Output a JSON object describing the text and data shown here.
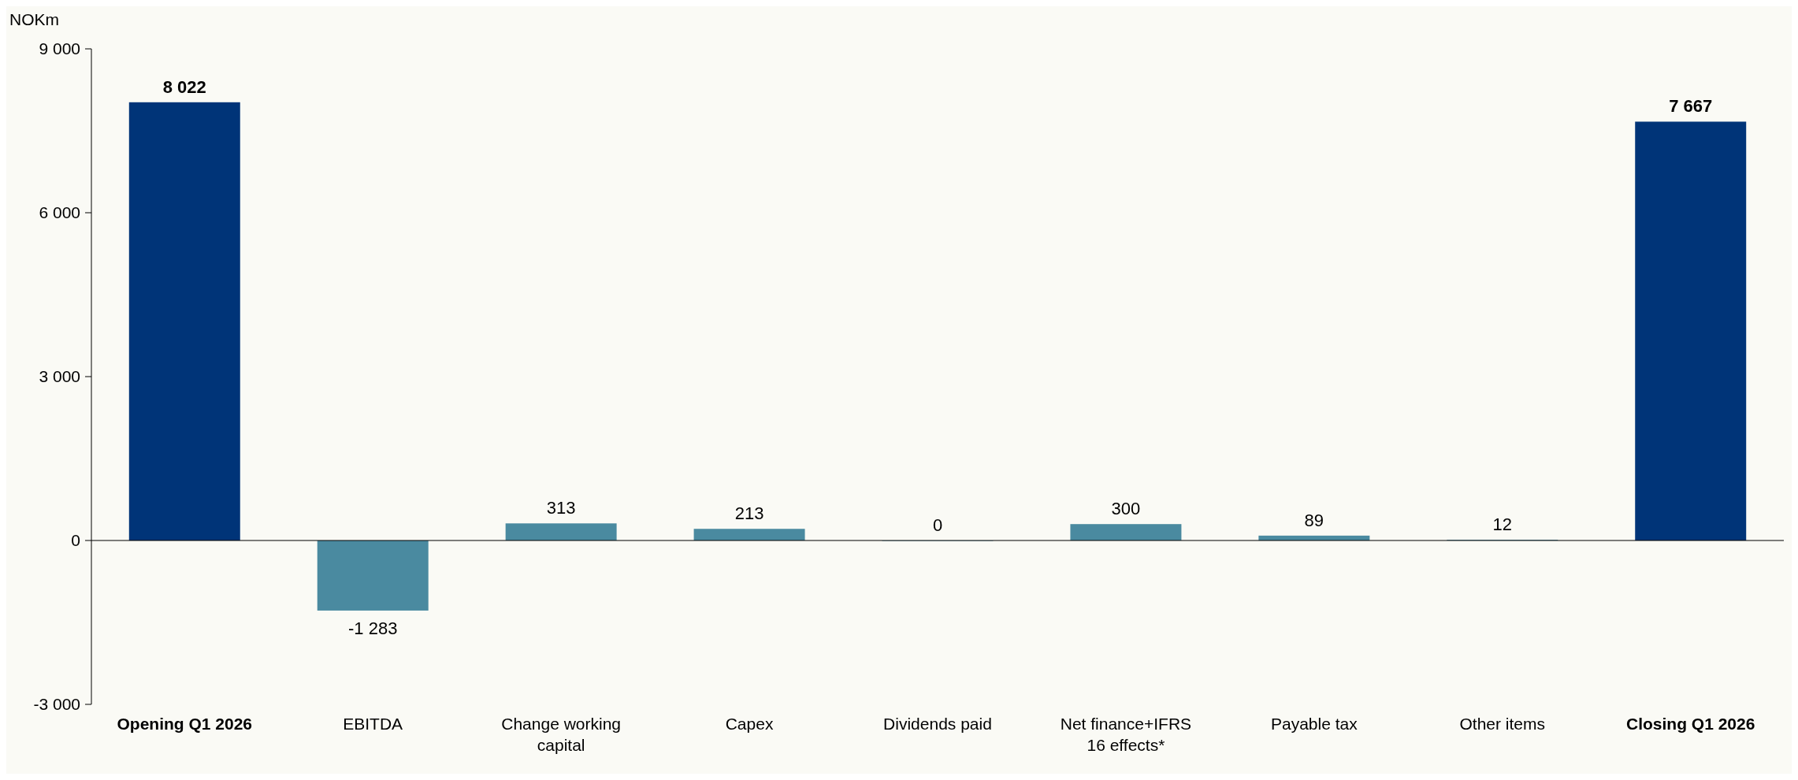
{
  "chart_data": {
    "type": "bar",
    "ylabel": "NOKm",
    "categories": [
      "Opening Q1 2026",
      "EBITDA",
      "Change working capital",
      "Capex",
      "Dividends paid",
      "Net finance+IFRS 16 effects*",
      "Payable tax",
      "Other items",
      "Closing Q1 2026"
    ],
    "values": [
      8022,
      -1283,
      313,
      213,
      0,
      300,
      89,
      12,
      7667
    ],
    "colors": [
      "#003478",
      "#4a8aa0",
      "#4a8aa0",
      "#4a8aa0",
      "#4a8aa0",
      "#4a8aa0",
      "#4a8aa0",
      "#4a8aa0",
      "#003478"
    ],
    "value_labels": [
      "8 022",
      "-1 283",
      "313",
      "213",
      "0",
      "300",
      "89",
      "12",
      "7 667"
    ],
    "ylim": [
      -3000,
      9000
    ],
    "yticks": [
      {
        "value": -3000,
        "label": "-3 000"
      },
      0,
      {
        "value": 3000,
        "label": "3 000"
      },
      {
        "value": 6000,
        "label": "6 000"
      },
      {
        "value": 9000,
        "label": "9 000"
      }
    ]
  }
}
